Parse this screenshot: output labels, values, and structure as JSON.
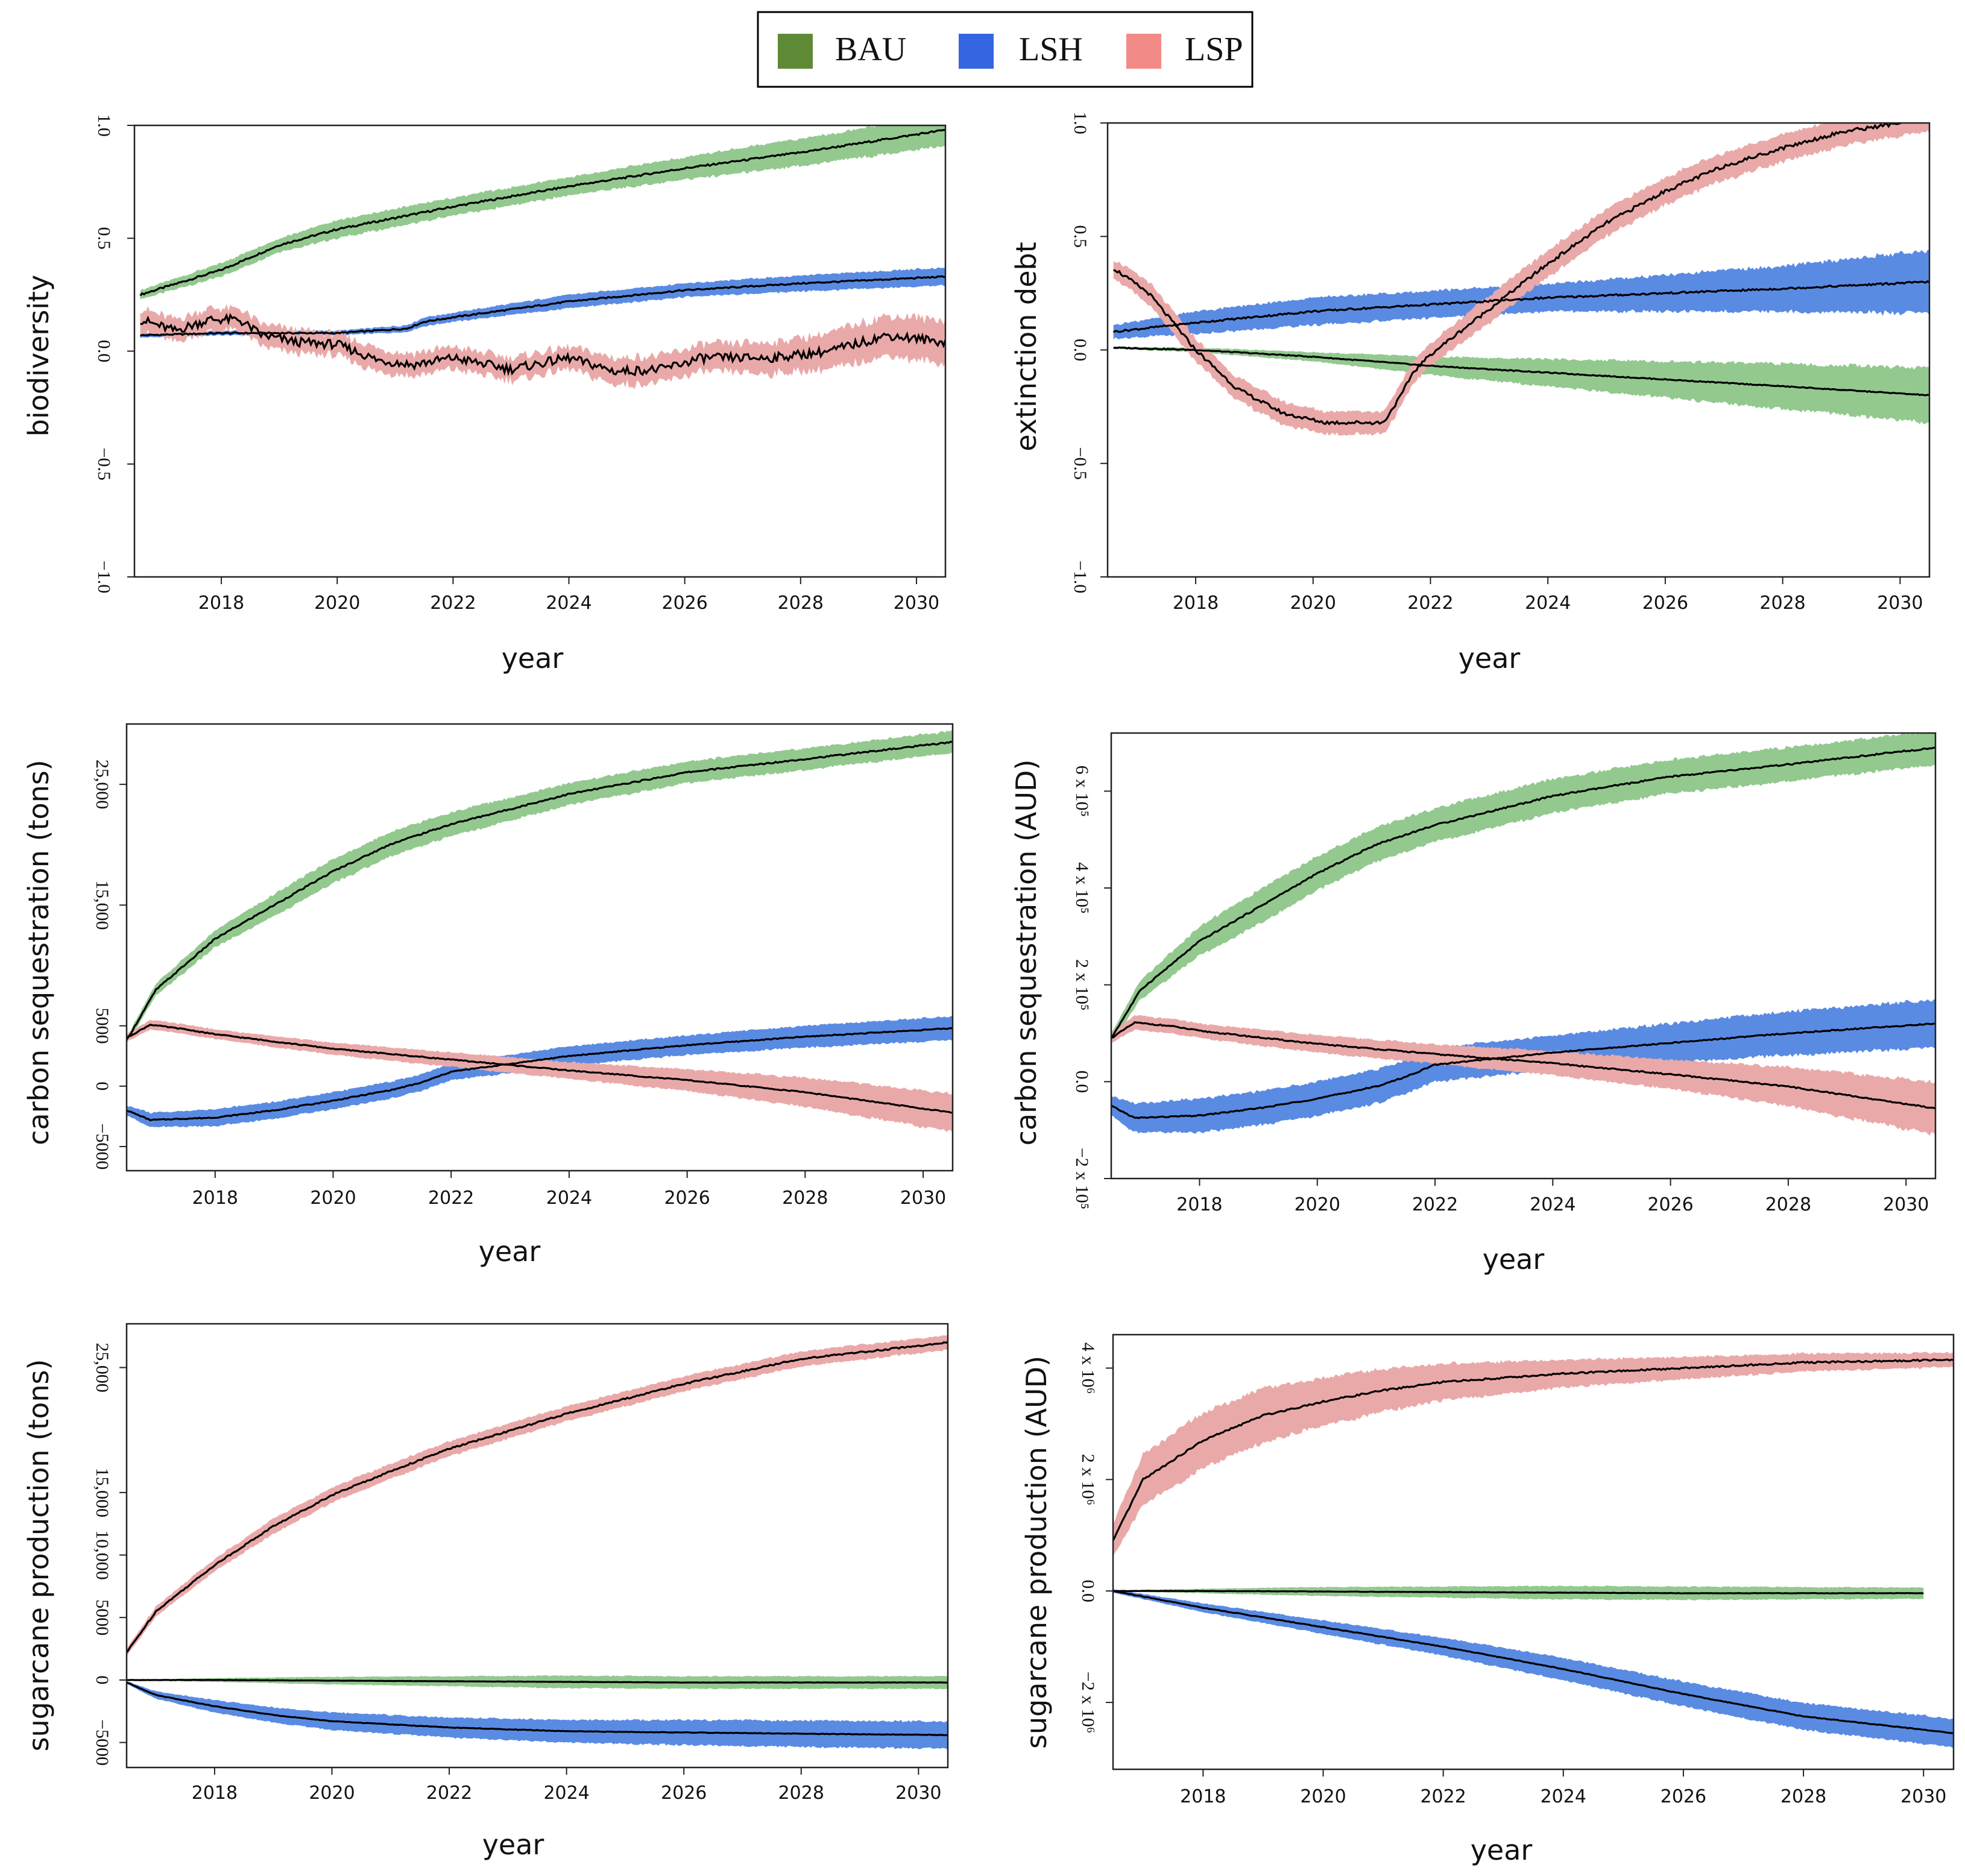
{
  "colors": {
    "BAU_fill": "#93c98f",
    "LSH_fill": "#5a8be3",
    "LSP_fill": "#eaa9a9",
    "BAU_legend": "#5f8a35",
    "LSH_legend": "#3366e0",
    "LSP_legend": "#f28b87",
    "mean_line": "#000000"
  },
  "legend": [
    {
      "key": "BAU",
      "label": "BAU"
    },
    {
      "key": "LSH",
      "label": "LSH"
    },
    {
      "key": "LSP",
      "label": "LSP"
    }
  ],
  "chart_data": [
    {
      "type": "line",
      "panel": "biodiversity",
      "ylabel": "biodiversity",
      "xlabel": "year",
      "xlim": [
        2016.5,
        2030.5
      ],
      "ylim": [
        -1.0,
        1.0
      ],
      "xticks": [
        2018,
        2020,
        2022,
        2024,
        2026,
        2028,
        2030
      ],
      "yticks": [
        {
          "v": -1.0,
          "t": "−1.0"
        },
        {
          "v": -0.5,
          "t": "−0.5"
        },
        {
          "v": 0,
          "t": "0.0"
        },
        {
          "v": 0.5,
          "t": "0.5"
        },
        {
          "v": 1.0,
          "t": "1.0"
        }
      ],
      "series": [
        {
          "name": "BAU",
          "x": [
            2016.6,
            2018,
            2019,
            2020,
            2022,
            2024,
            2026,
            2028,
            2030.5
          ],
          "y": [
            0.25,
            0.36,
            0.47,
            0.54,
            0.64,
            0.73,
            0.81,
            0.88,
            0.98
          ],
          "band": [
            0.02,
            0.03,
            0.03,
            0.04,
            0.04,
            0.04,
            0.05,
            0.06,
            0.07
          ],
          "noise": 0.004
        },
        {
          "name": "LSH",
          "x": [
            2016.6,
            2018,
            2020,
            2021.2,
            2021.5,
            2022,
            2024,
            2026,
            2028,
            2030.5
          ],
          "y": [
            0.07,
            0.08,
            0.08,
            0.1,
            0.13,
            0.15,
            0.22,
            0.27,
            0.3,
            0.33
          ],
          "band": [
            0.01,
            0.01,
            0.01,
            0.015,
            0.02,
            0.02,
            0.03,
            0.03,
            0.035,
            0.04
          ],
          "noise": 0.003
        },
        {
          "name": "LSP",
          "x": [
            2016.6,
            2017.2,
            2017.8,
            2018.3,
            2018.7,
            2019.3,
            2020,
            2020.7,
            2021.3,
            2022,
            2023,
            2024,
            2024.8,
            2025.6,
            2026.3,
            2027.5,
            2028.5,
            2029.5,
            2030.5
          ],
          "y": [
            0.14,
            0.09,
            0.14,
            0.14,
            0.07,
            0.04,
            0.03,
            -0.04,
            -0.06,
            -0.03,
            -0.08,
            -0.03,
            -0.09,
            -0.08,
            -0.03,
            -0.03,
            0.0,
            0.07,
            0.04
          ],
          "band": [
            0.05,
            0.05,
            0.05,
            0.05,
            0.05,
            0.05,
            0.05,
            0.05,
            0.05,
            0.05,
            0.05,
            0.05,
            0.06,
            0.06,
            0.06,
            0.07,
            0.08,
            0.09,
            0.1
          ],
          "noise": 0.02
        }
      ]
    },
    {
      "type": "line",
      "panel": "extinction-debt",
      "ylabel": "extinction debt",
      "xlabel": "year",
      "xlim": [
        2016.5,
        2030.5
      ],
      "ylim": [
        -1.0,
        1.0
      ],
      "xticks": [
        2018,
        2020,
        2022,
        2024,
        2026,
        2028,
        2030
      ],
      "yticks": [
        {
          "v": -1.0,
          "t": "−1.0"
        },
        {
          "v": -0.5,
          "t": "−0.5"
        },
        {
          "v": 0,
          "t": "0.0"
        },
        {
          "v": 0.5,
          "t": "0.5"
        },
        {
          "v": 1.0,
          "t": "1.0"
        }
      ],
      "series": [
        {
          "name": "BAU",
          "x": [
            2016.6,
            2018,
            2020,
            2022,
            2024,
            2026,
            2028,
            2030.5
          ],
          "y": [
            0.01,
            0.0,
            -0.03,
            -0.07,
            -0.1,
            -0.13,
            -0.16,
            -0.2
          ],
          "band": [
            0.005,
            0.01,
            0.02,
            0.04,
            0.06,
            0.08,
            0.1,
            0.12
          ],
          "noise": 0.002
        },
        {
          "name": "LSH",
          "x": [
            2016.6,
            2018,
            2020,
            2022,
            2024,
            2026,
            2028,
            2030.5
          ],
          "y": [
            0.08,
            0.12,
            0.17,
            0.2,
            0.23,
            0.25,
            0.27,
            0.3
          ],
          "band": [
            0.03,
            0.05,
            0.06,
            0.06,
            0.06,
            0.08,
            0.1,
            0.14
          ],
          "noise": 0.004
        },
        {
          "name": "LSP",
          "x": [
            2016.6,
            2017.2,
            2018,
            2018.7,
            2019.5,
            2020.2,
            2021,
            2021.2,
            2021.5,
            2021.7,
            2022,
            2023,
            2024,
            2025,
            2026,
            2027,
            2028,
            2029,
            2030.5
          ],
          "y": [
            0.36,
            0.25,
            0.0,
            -0.17,
            -0.28,
            -0.32,
            -0.32,
            -0.32,
            -0.2,
            -0.1,
            -0.02,
            0.18,
            0.38,
            0.56,
            0.7,
            0.81,
            0.89,
            0.96,
            1.02
          ],
          "band": [
            0.04,
            0.05,
            0.05,
            0.05,
            0.05,
            0.05,
            0.05,
            0.05,
            0.05,
            0.05,
            0.05,
            0.06,
            0.06,
            0.06,
            0.06,
            0.06,
            0.06,
            0.06,
            0.06
          ],
          "noise": 0.008
        }
      ]
    },
    {
      "type": "line",
      "panel": "carbon-tons",
      "ylabel": "carbon sequestration (tons)",
      "xlabel": "year",
      "xlim": [
        2016.5,
        2030.5
      ],
      "ylim": [
        -7000,
        30000
      ],
      "xticks": [
        2018,
        2020,
        2022,
        2024,
        2026,
        2028,
        2030
      ],
      "yticks": [
        {
          "v": -5000,
          "t": "−5000"
        },
        {
          "v": 0,
          "t": "0"
        },
        {
          "v": 5000,
          "t": "5000"
        },
        {
          "v": 15000,
          "t": "15,000"
        },
        {
          "v": 25000,
          "t": "25,000"
        }
      ],
      "series": [
        {
          "name": "BAU",
          "x": [
            2016.5,
            2017,
            2018,
            2019,
            2020,
            2021,
            2022,
            2024,
            2026,
            2028,
            2030.5
          ],
          "y": [
            3800,
            8000,
            12200,
            15000,
            17800,
            20100,
            21700,
            24200,
            26000,
            27100,
            28500
          ],
          "band": [
            300,
            500,
            700,
            900,
            1000,
            1000,
            1000,
            900,
            900,
            900,
            900
          ],
          "noise": 60
        },
        {
          "name": "LSH",
          "x": [
            2016.5,
            2016.9,
            2018,
            2019,
            2020,
            2021,
            2021.5,
            2022,
            2024,
            2026,
            2028,
            2030.5
          ],
          "y": [
            -2000,
            -2800,
            -2600,
            -2000,
            -1200,
            -300,
            300,
            1200,
            2500,
            3400,
            4100,
            4800
          ],
          "band": [
            400,
            600,
            700,
            700,
            700,
            700,
            700,
            700,
            800,
            800,
            900,
            1000
          ],
          "noise": 40
        },
        {
          "name": "LSP",
          "x": [
            2016.5,
            2016.9,
            2017.5,
            2018,
            2020,
            2022,
            2024,
            2026,
            2028,
            2030.5
          ],
          "y": [
            4000,
            5100,
            4700,
            4300,
            3100,
            2200,
            1300,
            500,
            -500,
            -2200
          ],
          "band": [
            300,
            400,
            400,
            400,
            500,
            600,
            700,
            900,
            1200,
            1600
          ],
          "noise": 40
        }
      ]
    },
    {
      "type": "line",
      "panel": "carbon-aud",
      "ylabel": "carbon sequestration (AUD)",
      "xlabel": "year",
      "xlim": [
        2016.5,
        2030.5
      ],
      "ylim": [
        -200000,
        720000
      ],
      "xticks": [
        2018,
        2020,
        2022,
        2024,
        2026,
        2028,
        2030
      ],
      "yticks": [
        {
          "v": -200000,
          "t": "−2 x 10⁵"
        },
        {
          "v": 0,
          "t": "0.0"
        },
        {
          "v": 200000,
          "t": "2 x 10⁵"
        },
        {
          "v": 400000,
          "t": "4 x 10⁵"
        },
        {
          "v": 600000,
          "t": "6 x 10⁵"
        }
      ],
      "series": [
        {
          "name": "BAU",
          "x": [
            2016.5,
            2017,
            2018,
            2019,
            2020,
            2021,
            2022,
            2024,
            2026,
            2028,
            2030.5
          ],
          "y": [
            90000,
            190000,
            290000,
            360000,
            430000,
            490000,
            530000,
            590000,
            630000,
            655000,
            690000
          ],
          "band": [
            10000,
            20000,
            30000,
            35000,
            35000,
            35000,
            35000,
            35000,
            35000,
            35000,
            35000
          ],
          "noise": 1500
        },
        {
          "name": "LSH",
          "x": [
            2016.5,
            2016.9,
            2018,
            2019,
            2020,
            2021,
            2021.5,
            2022,
            2024,
            2026,
            2028,
            2030.5
          ],
          "y": [
            -50000,
            -75000,
            -70000,
            -55000,
            -35000,
            -10000,
            10000,
            35000,
            60000,
            80000,
            100000,
            120000
          ],
          "band": [
            20000,
            30000,
            35000,
            35000,
            35000,
            35000,
            35000,
            35000,
            35000,
            40000,
            45000,
            50000
          ],
          "noise": 1200
        },
        {
          "name": "LSP",
          "x": [
            2016.5,
            2016.9,
            2017.5,
            2018,
            2020,
            2022,
            2024,
            2026,
            2028,
            2030.5
          ],
          "y": [
            90000,
            122000,
            115000,
            105000,
            78000,
            57000,
            38000,
            15000,
            -10000,
            -55000
          ],
          "band": [
            10000,
            15000,
            15000,
            15000,
            18000,
            20000,
            25000,
            30000,
            40000,
            55000
          ],
          "noise": 1200
        }
      ]
    },
    {
      "type": "line",
      "panel": "sugarcane-tons",
      "ylabel": "sugarcane production (tons)",
      "xlabel": "year",
      "xlim": [
        2016.5,
        2030.5
      ],
      "ylim": [
        -7000,
        28500
      ],
      "xticks": [
        2018,
        2020,
        2022,
        2024,
        2026,
        2028,
        2030
      ],
      "yticks": [
        {
          "v": -5000,
          "t": "−5000"
        },
        {
          "v": 0,
          "t": "0"
        },
        {
          "v": 5000,
          "t": "5000"
        },
        {
          "v": 10000,
          "t": "10,000"
        },
        {
          "v": 15000,
          "t": "15,000"
        },
        {
          "v": 25000,
          "t": "25,000"
        }
      ],
      "series": [
        {
          "name": "BAU",
          "x": [
            2016.5,
            2018,
            2020,
            2022,
            2024,
            2026,
            2028,
            2030.5
          ],
          "y": [
            0,
            0,
            -50,
            -100,
            -150,
            -200,
            -200,
            -200
          ],
          "band": [
            20,
            150,
            300,
            400,
            500,
            500,
            500,
            500
          ],
          "noise": 10
        },
        {
          "name": "LSH",
          "x": [
            2016.5,
            2017,
            2018,
            2019,
            2020,
            2022,
            2024,
            2026,
            2028,
            2030.5
          ],
          "y": [
            -200,
            -1200,
            -2100,
            -2800,
            -3300,
            -3800,
            -4100,
            -4200,
            -4300,
            -4400
          ],
          "band": [
            100,
            300,
            500,
            600,
            700,
            800,
            900,
            1000,
            1050,
            1100
          ],
          "noise": 20
        },
        {
          "name": "LSP",
          "x": [
            2016.5,
            2017,
            2018,
            2019,
            2020,
            2021,
            2022,
            2024,
            2026,
            2028,
            2030.5
          ],
          "y": [
            2200,
            5500,
            9200,
            12300,
            14800,
            16700,
            18500,
            21300,
            23700,
            25700,
            27000
          ],
          "band": [
            300,
            400,
            500,
            600,
            600,
            600,
            600,
            600,
            600,
            600,
            600
          ],
          "noise": 60
        }
      ]
    },
    {
      "type": "line",
      "panel": "sugarcane-aud",
      "ylabel": "sugarcane production (AUD)",
      "xlabel": "year",
      "xlim": [
        2016.5,
        2030.5
      ],
      "ylim": [
        -3200000,
        4600000
      ],
      "xticks": [
        2018,
        2020,
        2022,
        2024,
        2026,
        2028,
        2030
      ],
      "yticks": [
        {
          "v": -2000000,
          "t": "−2 x 10⁶"
        },
        {
          "v": 0,
          "t": "0.0"
        },
        {
          "v": 2000000,
          "t": "2 x 10⁶"
        },
        {
          "v": 4000000,
          "t": "4 x 10⁶"
        }
      ],
      "series": [
        {
          "name": "BAU",
          "x": [
            2016.5,
            2018,
            2020,
            2022,
            2024,
            2026,
            2028,
            2030
          ],
          "y": [
            0,
            0,
            -10000,
            -20000,
            -30000,
            -40000,
            -40000,
            -40000
          ],
          "band": [
            10000,
            40000,
            80000,
            100000,
            120000,
            120000,
            110000,
            100000
          ],
          "noise": 3000
        },
        {
          "name": "LSH",
          "x": [
            2016.5,
            2018,
            2020,
            2022,
            2024,
            2026,
            2028,
            2030.5
          ],
          "y": [
            0,
            -300000,
            -650000,
            -1000000,
            -1400000,
            -1850000,
            -2250000,
            -2550000
          ],
          "band": [
            30000,
            80000,
            120000,
            160000,
            200000,
            220000,
            240000,
            260000
          ],
          "noise": 6000
        },
        {
          "name": "LSP",
          "x": [
            2016.5,
            2017,
            2018,
            2019,
            2020,
            2021,
            2022,
            2024,
            2026,
            2028,
            2030.5
          ],
          "y": [
            900000,
            2000000,
            2700000,
            3150000,
            3400000,
            3600000,
            3750000,
            3900000,
            4000000,
            4100000,
            4150000
          ],
          "band": [
            300000,
            450000,
            500000,
            480000,
            430000,
            380000,
            330000,
            250000,
            200000,
            160000,
            130000
          ],
          "noise": 15000
        }
      ]
    }
  ]
}
